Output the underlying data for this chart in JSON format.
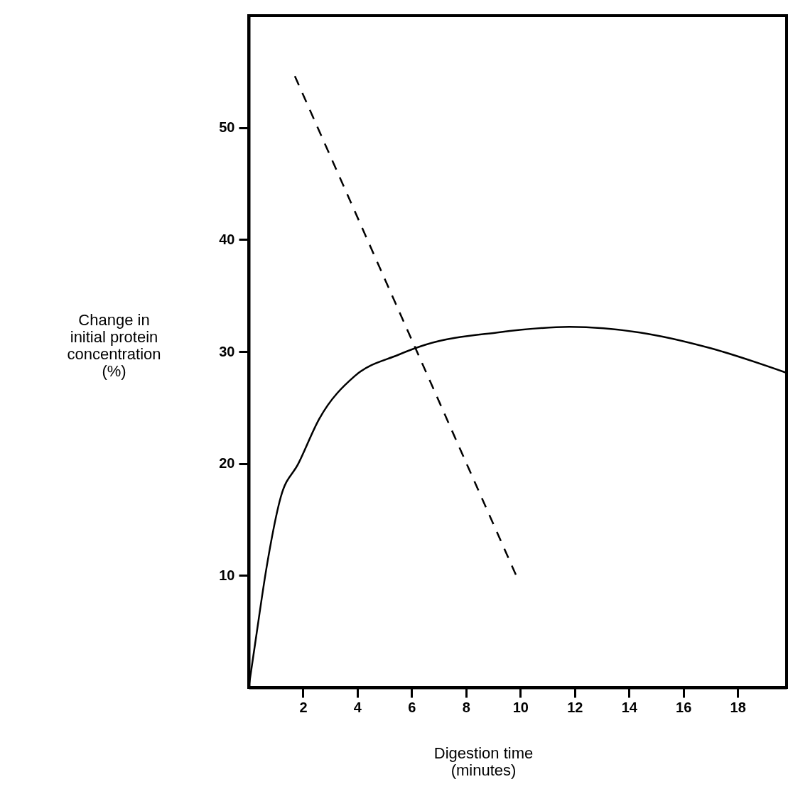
{
  "chart_data": {
    "type": "line",
    "xlabel": "Digestion time\n(minutes)",
    "ylabel": "Change in\ninitial protein\nconcentration\n(%)",
    "xlim": [
      0,
      19.8
    ],
    "ylim": [
      0,
      60
    ],
    "xticks": [
      2,
      4,
      6,
      8,
      10,
      12,
      14,
      16,
      18
    ],
    "yticks": [
      10,
      20,
      30,
      40,
      50
    ],
    "grid": false,
    "marker": "none",
    "series": [
      {
        "color": "#000000",
        "line_style": "solid",
        "x": [
          0,
          0.26,
          0.65,
          1.18,
          1.83,
          2.6,
          3.9,
          5.5,
          6.5,
          9.15,
          11.8,
          14.4,
          17.0,
          19.8
        ],
        "values": [
          0,
          4.3,
          10.6,
          17,
          20,
          24,
          27.8,
          29.7,
          30.6,
          31.7,
          32.2,
          31.7,
          30.3,
          28.1
        ]
      },
      {
        "color": "#000000",
        "line_style": "dashed",
        "x": [
          1.7,
          9.9
        ],
        "values": [
          54.6,
          9.7
        ]
      }
    ]
  }
}
